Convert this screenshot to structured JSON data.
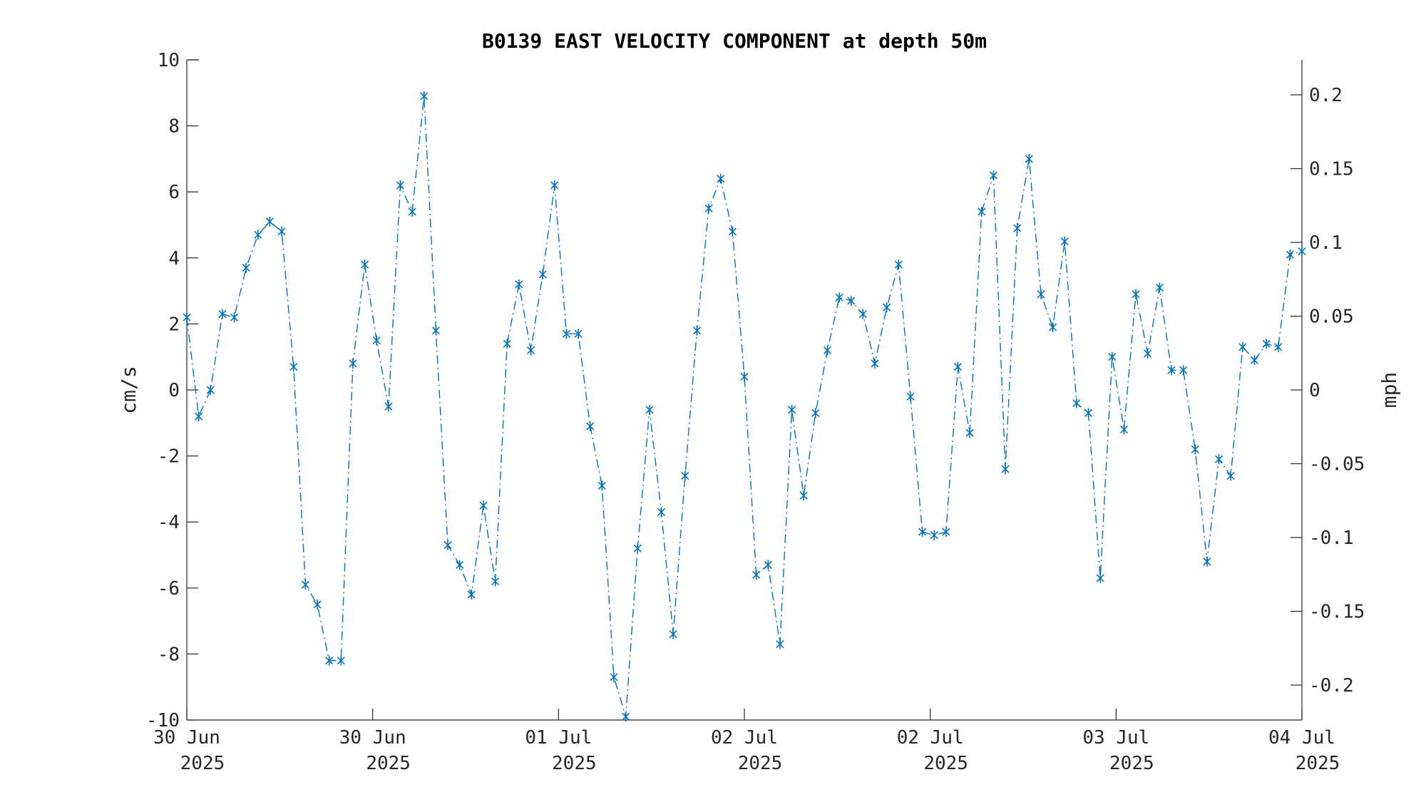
{
  "chart_data": {
    "type": "line",
    "title": "B0139 EAST VELOCITY COMPONENT at depth 50m",
    "ylabel": "cm/s",
    "ylabel_right": "mph",
    "ylim": [
      -10,
      10
    ],
    "ylim_right": [
      -0.2237,
      0.2237
    ],
    "yticks": [
      "10",
      "8",
      "6",
      "4",
      "2",
      "0",
      "-2",
      "-4",
      "-6",
      "-8",
      "-10"
    ],
    "yticks_right": [
      "0.2",
      "0.15",
      "0.1",
      "0.05",
      "0",
      "-0.05",
      "-0.1",
      "-0.15",
      "-0.2"
    ],
    "xticks": [
      {
        "date": "30 Jun",
        "year": "2025"
      },
      {
        "date": "30 Jun",
        "year": "2025"
      },
      {
        "date": "01 Jul",
        "year": "2025"
      },
      {
        "date": "02 Jul",
        "year": "2025"
      },
      {
        "date": "02 Jul",
        "year": "2025"
      },
      {
        "date": "03 Jul",
        "year": "2025"
      },
      {
        "date": "04 Jul",
        "year": "2025"
      }
    ],
    "marker": "*",
    "line_style": "dash-dot",
    "color": "#0072BD",
    "series": [
      {
        "values": [
          2.2,
          -0.8,
          0.0,
          2.3,
          2.2,
          3.7,
          4.7,
          5.1,
          4.8,
          0.7,
          -5.9,
          -6.5,
          -8.2,
          -8.2,
          0.8,
          3.8,
          1.5,
          -0.5,
          6.2,
          5.4,
          8.9,
          1.8,
          -4.7,
          -5.3,
          -6.2,
          -3.5,
          -5.8,
          1.4,
          3.2,
          1.2,
          3.5,
          6.2,
          1.7,
          1.7,
          -1.1,
          -2.9,
          -8.7,
          -9.9,
          -4.8,
          -0.6,
          -3.7,
          -7.4,
          -2.6,
          1.8,
          5.5,
          6.4,
          4.8,
          0.4,
          -5.6,
          -5.3,
          -7.7,
          -0.6,
          -3.2,
          -0.7,
          1.2,
          2.8,
          2.7,
          2.3,
          0.8,
          2.5,
          3.8,
          -0.2,
          -4.3,
          -4.4,
          -4.3,
          0.7,
          -1.3,
          5.4,
          6.5,
          -2.4,
          4.9,
          7.0,
          2.9,
          1.9,
          4.5,
          -0.4,
          -0.7,
          -5.7,
          1.0,
          -1.2,
          2.9,
          1.1,
          3.1,
          0.6,
          0.6,
          -1.8,
          -5.2,
          -2.1,
          -2.6,
          1.3,
          0.9,
          1.4,
          1.3,
          4.1,
          4.2
        ]
      }
    ]
  }
}
